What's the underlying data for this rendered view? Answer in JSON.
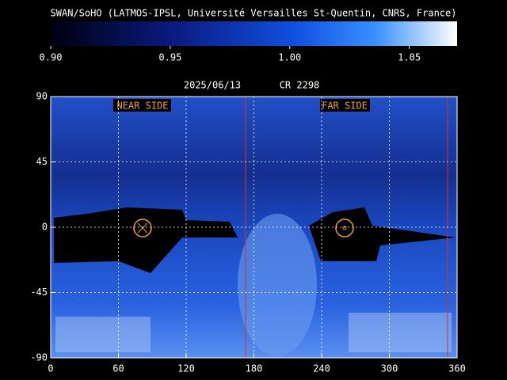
{
  "header": {
    "title": "SWAN/SoHO (LATMOS-IPSL, Université Versailles St-Quentin, CNRS, France)"
  },
  "colorbar": {
    "range": [
      0.9,
      1.07
    ],
    "ticks": [
      {
        "value": 0.9,
        "label": "0.90"
      },
      {
        "value": 0.95,
        "label": "0.95"
      },
      {
        "value": 1.0,
        "label": "1.00"
      },
      {
        "value": 1.05,
        "label": "1.05"
      }
    ]
  },
  "map": {
    "date": "2025/06/13",
    "rotation": "CR 2298",
    "near_label": "NEAR SIDE",
    "far_label": "FAR SIDE",
    "xlim": [
      0,
      360
    ],
    "ylim": [
      -90,
      90
    ],
    "xticks": [
      0,
      60,
      120,
      180,
      240,
      300,
      360
    ],
    "yticks": [
      90,
      45,
      0,
      -45,
      -90
    ]
  }
}
